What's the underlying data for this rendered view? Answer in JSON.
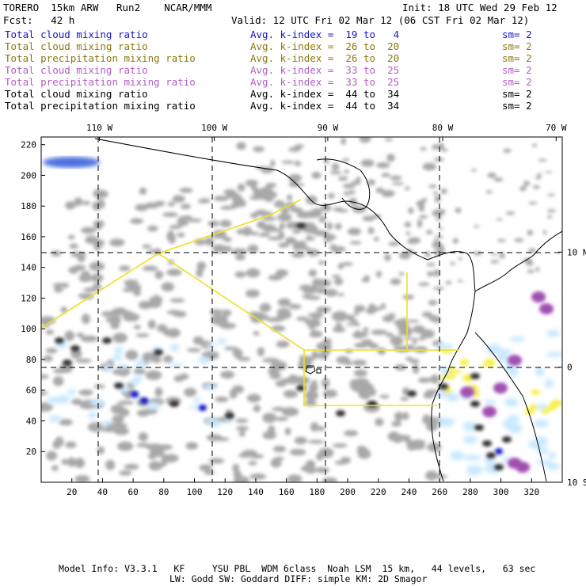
{
  "header": {
    "model": "TORERO  15km ARW   Run2    NCAR/MMM",
    "init": "Init: 18 UTC Wed 29 Feb 12",
    "fcst": "Fcst:   42 h",
    "valid": "Valid: 12 UTC Fri 02 Mar 12 (06 CST Fri 02 Mar 12)"
  },
  "legend": [
    {
      "name": "Total cloud mixing ratio",
      "index": "Avg. k-index =  19 to   4",
      "sm": "sm= 2",
      "color": "#1515c8"
    },
    {
      "name": "Total cloud mixing ratio",
      "index": "Avg. k-index =  26 to  20",
      "sm": "sm= 2",
      "color": "#8a7a10"
    },
    {
      "name": "Total precipitation mixing ratio",
      "index": "Avg. k-index =  26 to  20",
      "sm": "sm= 2",
      "color": "#8a7a10"
    },
    {
      "name": "Total cloud mixing ratio",
      "index": "Avg. k-index =  33 to  25",
      "sm": "sm= 2",
      "color": "#b060c0"
    },
    {
      "name": "Total precipitation mixing ratio",
      "index": "Avg. k-index =  33 to  25",
      "sm": "sm= 2",
      "color": "#b060c0"
    },
    {
      "name": "Total cloud mixing ratio",
      "index": "Avg. k-index =  44 to  34",
      "sm": "sm= 2",
      "color": "#000000"
    },
    {
      "name": "Total precipitation mixing ratio",
      "index": "Avg. k-index =  44 to  34",
      "sm": "sm= 2",
      "color": "#000000"
    }
  ],
  "footer": {
    "line1": "Model Info: V3.3.1   KF     YSU PBL  WDM 6class  Noah LSM  15 km,   44 levels,   63 sec",
    "line2": "LW: Godd SW: Goddard DIFF: simple KM: 2D Smagor"
  },
  "chart_data": {
    "type": "heatmap",
    "xlim": [
      0,
      340
    ],
    "ylim": [
      0,
      225
    ],
    "x_ticks": [
      20,
      40,
      60,
      80,
      100,
      120,
      140,
      160,
      180,
      200,
      220,
      240,
      260,
      280,
      300,
      320
    ],
    "y_ticks": [
      20,
      40,
      60,
      80,
      100,
      120,
      140,
      160,
      180,
      200,
      220
    ],
    "lon_labels": [
      {
        "label": "110 W",
        "x": 38
      },
      {
        "label": "100 W",
        "x": 113
      },
      {
        "label": "90 W",
        "x": 187
      },
      {
        "label": "80 W",
        "x": 262
      },
      {
        "label": "70 W",
        "x": 336
      }
    ],
    "lat_labels": [
      {
        "label": "10 N",
        "y": 150
      },
      {
        "label": "0",
        "y": 75
      },
      {
        "label": "10 S",
        "y": 0
      }
    ],
    "grid": "dashed lat/lon lines every 10 degrees",
    "shading_colors": {
      "cloud_light": "#a8a8a8",
      "cloud_dark": "#303030",
      "blue": "#1515c8",
      "light_blue": "#c8e8ff",
      "yellow": "#f8f050",
      "purple": "#a050b0",
      "boundary": "#f0e020"
    }
  }
}
